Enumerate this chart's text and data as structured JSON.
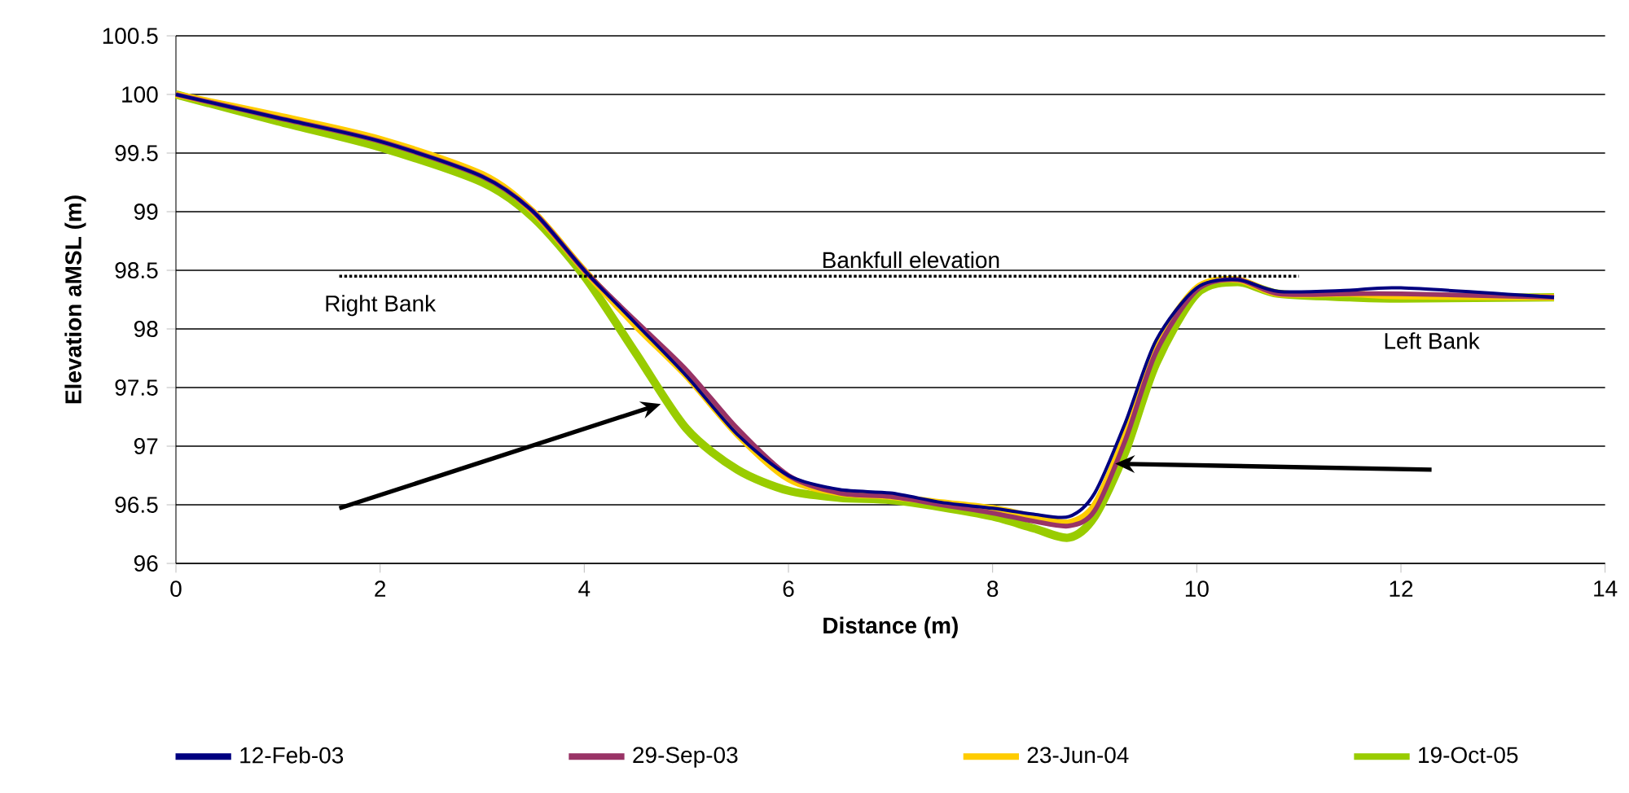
{
  "chart_data": {
    "type": "line",
    "xlabel": "Distance (m)",
    "ylabel": "Elevation aMSL (m)",
    "xlim": [
      0,
      14
    ],
    "xticks": [
      0,
      2,
      4,
      6,
      8,
      10,
      12,
      14
    ],
    "ylim": [
      96,
      100.5
    ],
    "yticks": [
      96,
      96.5,
      97,
      97.5,
      98,
      98.5,
      99,
      99.5,
      100,
      100.5
    ],
    "grid": "y",
    "legend": "bottom",
    "marker": "none",
    "line_style": "solid",
    "ref_lines": [
      {
        "axis": "y",
        "value": 98.45,
        "label": "Bankfull elevation",
        "line_style": "dotted",
        "color": "#000000"
      }
    ],
    "annotations": [
      "Right Bank",
      "Left Bank"
    ],
    "x": [
      0,
      1,
      2,
      3,
      3.5,
      4,
      4.5,
      5,
      5.5,
      6,
      6.5,
      7,
      7.5,
      8,
      8.4,
      8.75,
      9,
      9.3,
      9.6,
      10,
      10.4,
      10.8,
      11.5,
      12,
      13.5
    ],
    "series": [
      {
        "name": "12-Feb-03",
        "color": "#000080",
        "values": [
          100,
          99.8,
          99.6,
          99.3,
          99.0,
          98.5,
          98.05,
          97.6,
          97.1,
          96.75,
          96.63,
          96.6,
          96.52,
          96.47,
          96.42,
          96.4,
          96.6,
          97.2,
          97.9,
          98.35,
          98.42,
          98.32,
          98.33,
          98.35,
          98.27
        ]
      },
      {
        "name": "29-Sep-03",
        "color": "#993366",
        "values": [
          100,
          99.8,
          99.6,
          99.3,
          99.0,
          98.5,
          98.07,
          97.65,
          97.15,
          96.75,
          96.6,
          96.57,
          96.5,
          96.43,
          96.36,
          96.32,
          96.45,
          97.05,
          97.8,
          98.33,
          98.42,
          98.3,
          98.3,
          98.3,
          98.27
        ]
      },
      {
        "name": "23-Jun-04",
        "color": "#ffcc00",
        "values": [
          100,
          99.82,
          99.62,
          99.32,
          99.0,
          98.5,
          98.03,
          97.6,
          97.1,
          96.72,
          96.6,
          96.57,
          96.52,
          96.47,
          96.4,
          96.35,
          96.5,
          97.1,
          97.85,
          98.35,
          98.42,
          98.3,
          98.3,
          98.28,
          98.27
        ]
      },
      {
        "name": "19-Oct-05",
        "color": "#99cc00",
        "values": [
          100,
          99.77,
          99.55,
          99.25,
          98.95,
          98.45,
          97.8,
          97.15,
          96.8,
          96.62,
          96.56,
          96.54,
          96.48,
          96.4,
          96.3,
          96.22,
          96.4,
          96.95,
          97.7,
          98.3,
          98.4,
          98.3,
          98.27,
          98.26,
          98.27
        ]
      }
    ]
  }
}
